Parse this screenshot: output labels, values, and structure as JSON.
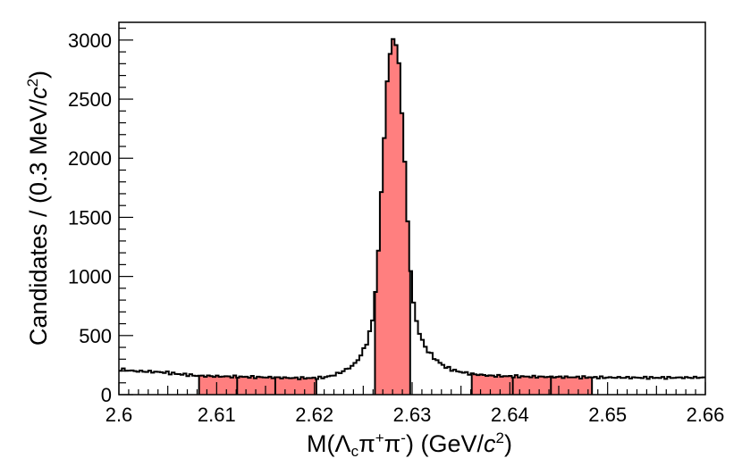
{
  "chart_data": {
    "type": "histogram",
    "x_range": [
      2.6,
      2.66
    ],
    "y_range": [
      0,
      3150
    ],
    "bin_width_gev": 0.0003,
    "xticks": [
      2.6,
      2.61,
      2.62,
      2.63,
      2.64,
      2.65,
      2.66
    ],
    "xtick_labels": [
      "2.6",
      "2.61",
      "2.62",
      "2.63",
      "2.64",
      "2.65",
      "2.66"
    ],
    "yticks": [
      0,
      500,
      1000,
      1500,
      2000,
      2500,
      3000
    ],
    "ytick_labels": [
      "0",
      "500",
      "1000",
      "1500",
      "2000",
      "2500",
      "3000"
    ],
    "xlabel_parts": {
      "pre": "M(",
      "lambda": "Λ",
      "lambda_sub": "c",
      "pi1": "π",
      "plus": "+",
      "pi2": "π",
      "minus": "-",
      "mid": ") (GeV/",
      "c": "c",
      "sq": "2",
      "post": ")"
    },
    "ylabel_parts": {
      "pre": "Candidates / (0.3 MeV/",
      "c": "c",
      "sq": "2",
      "post": ")"
    },
    "fill_color": "#ff7f7f",
    "highlighted_regions": [
      [
        2.6082,
        2.6121
      ],
      [
        2.6121,
        2.616
      ],
      [
        2.616,
        2.6202
      ],
      [
        2.6262,
        2.6298
      ],
      [
        2.6361,
        2.6403
      ],
      [
        2.6403,
        2.6442
      ],
      [
        2.6442,
        2.6484
      ]
    ],
    "profile": [
      [
        2.6,
        215
      ],
      [
        2.6015,
        200
      ],
      [
        2.603,
        195
      ],
      [
        2.6045,
        190
      ],
      [
        2.606,
        175
      ],
      [
        2.608,
        160
      ],
      [
        2.61,
        155
      ],
      [
        2.612,
        152
      ],
      [
        2.614,
        148
      ],
      [
        2.616,
        145
      ],
      [
        2.618,
        140
      ],
      [
        2.62,
        140
      ],
      [
        2.621,
        145
      ],
      [
        2.622,
        165
      ],
      [
        2.623,
        200
      ],
      [
        2.624,
        250
      ],
      [
        2.6245,
        300
      ],
      [
        2.625,
        370
      ],
      [
        2.6255,
        470
      ],
      [
        2.626,
        650
      ],
      [
        2.6264,
        1000
      ],
      [
        2.6268,
        1600
      ],
      [
        2.6272,
        2300
      ],
      [
        2.6276,
        2800
      ],
      [
        2.6279,
        3000
      ],
      [
        2.6282,
        3020
      ],
      [
        2.6286,
        2850
      ],
      [
        2.629,
        2350
      ],
      [
        2.6294,
        1700
      ],
      [
        2.6298,
        1100
      ],
      [
        2.6302,
        720
      ],
      [
        2.6308,
        500
      ],
      [
        2.6315,
        380
      ],
      [
        2.6325,
        290
      ],
      [
        2.6335,
        230
      ],
      [
        2.6345,
        200
      ],
      [
        2.636,
        175
      ],
      [
        2.638,
        160
      ],
      [
        2.64,
        155
      ],
      [
        2.642,
        152
      ],
      [
        2.644,
        150
      ],
      [
        2.647,
        147
      ],
      [
        2.65,
        145
      ],
      [
        2.655,
        143
      ],
      [
        2.66,
        145
      ]
    ]
  }
}
